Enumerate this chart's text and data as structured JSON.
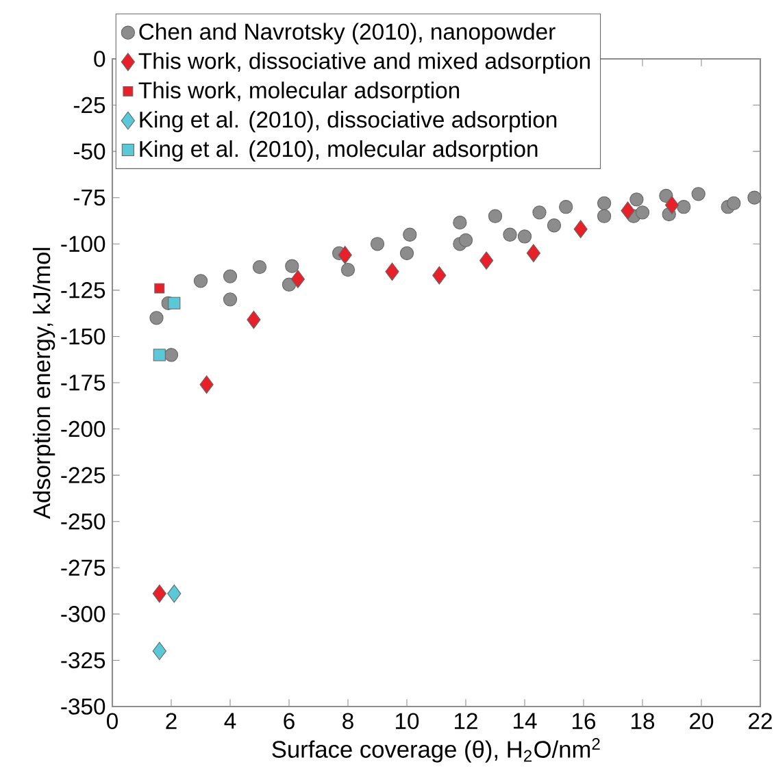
{
  "chart_data": {
    "type": "scatter",
    "xlabel": "Surface coverage (θ), H$_{2}$O/nm$^{2}$",
    "ylabel": "Adsorption energy, kJ/mol",
    "xlim": [
      0,
      22
    ],
    "ylim": [
      -350,
      0
    ],
    "xticks": [
      0,
      2,
      4,
      6,
      8,
      10,
      12,
      14,
      16,
      18,
      20,
      22
    ],
    "yticks": [
      -350,
      -325,
      -300,
      -275,
      -250,
      -225,
      -200,
      -175,
      -150,
      -125,
      -100,
      -75,
      -50,
      -25,
      0
    ],
    "legend": "top left",
    "grid": false,
    "series": [
      {
        "name": "Chen and Navrotsky (2010), nanopowder",
        "color": "#8c8c8c",
        "marker": "circle",
        "x": [
          1.5,
          1.9,
          2.0,
          3.0,
          4.0,
          4.0,
          5.0,
          6.1,
          6.0,
          7.7,
          8.0,
          9.0,
          10.1,
          10.0,
          11.8,
          11.8,
          12.0,
          13.0,
          13.5,
          14.0,
          14.5,
          15.0,
          15.4,
          16.7,
          16.7,
          17.8,
          17.7,
          18.0,
          18.8,
          18.9,
          19.4,
          19.9,
          20.9,
          21.1,
          21.8
        ],
        "values": [
          -140,
          -132,
          -160,
          -120,
          -117.5,
          -130,
          -112.5,
          -112,
          -122,
          -105,
          -114,
          -100,
          -95,
          -105,
          -88.5,
          -100,
          -98,
          -85,
          -95,
          -96,
          -83,
          -90,
          -80,
          -78,
          -85,
          -76,
          -85,
          -83,
          -74,
          -84,
          -80,
          -73,
          -80,
          -78,
          -75
        ]
      },
      {
        "name": "This work, dissociative and mixed adsorption",
        "color": "#e8202a",
        "marker": "diamond",
        "x": [
          1.6,
          3.2,
          4.8,
          6.3,
          7.9,
          9.5,
          11.1,
          12.7,
          14.3,
          15.9,
          17.5,
          19.0
        ],
        "values": [
          -289,
          -176,
          -141,
          -119,
          -106,
          -115,
          -117,
          -109,
          -105,
          -92,
          -82,
          -79
        ]
      },
      {
        "name": "This work, molecular adsorption",
        "color": "#e8202a",
        "marker": "square",
        "x": [
          1.6
        ],
        "values": [
          -124
        ]
      },
      {
        "name": "King et al. (2010), dissociative adsorption",
        "color": "#5bc8d8",
        "marker": "diamond",
        "x": [
          1.6,
          2.1
        ],
        "values": [
          -320,
          -289
        ]
      },
      {
        "name": "King et al. (2010), molecular adsorption",
        "color": "#5bc8d8",
        "marker": "square",
        "x": [
          1.6,
          2.1
        ],
        "values": [
          -160,
          -132
        ]
      }
    ]
  }
}
